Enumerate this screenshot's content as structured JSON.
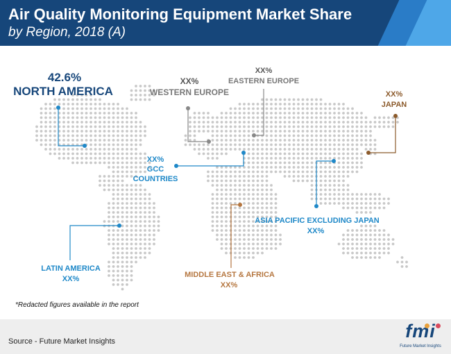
{
  "header": {
    "title": "Air Quality Monitoring Equipment Market Share",
    "subtitle": "by Region, 2018 (A)"
  },
  "regions": {
    "north_america": {
      "value": "42.6%",
      "name": "NORTH AMERICA"
    },
    "western_europe": {
      "value": "XX%",
      "name": "WESTERN EUROPE"
    },
    "eastern_europe": {
      "value": "XX%",
      "name": "EASTERN EUROPE"
    },
    "japan": {
      "value": "XX%",
      "name": "JAPAN"
    },
    "gcc": {
      "value": "XX%",
      "name_line1": "GCC",
      "name_line2": "COUNTRIES"
    },
    "asia_pacific": {
      "value": "XX%",
      "name": "ASIA PACIFIC EXCLUDING JAPAN"
    },
    "latin_america": {
      "value": "XX%",
      "name": "LATIN AMERICA"
    },
    "middle_east_africa": {
      "value": "XX%",
      "name": "MIDDLE EAST & AFRICA"
    }
  },
  "note": "*Redacted figures available in the report",
  "footer": {
    "source": "Source - Future Market Insights",
    "logo": "fmi",
    "logo_sub": "Future Market Insights"
  },
  "colors": {
    "header": "#16467a",
    "accent_blue": "#1e88c8",
    "europe_grey": "#777777",
    "japan_brown": "#8b5a2b",
    "mea_tan": "#b5763f",
    "map_dots": "#c8c8c8"
  }
}
